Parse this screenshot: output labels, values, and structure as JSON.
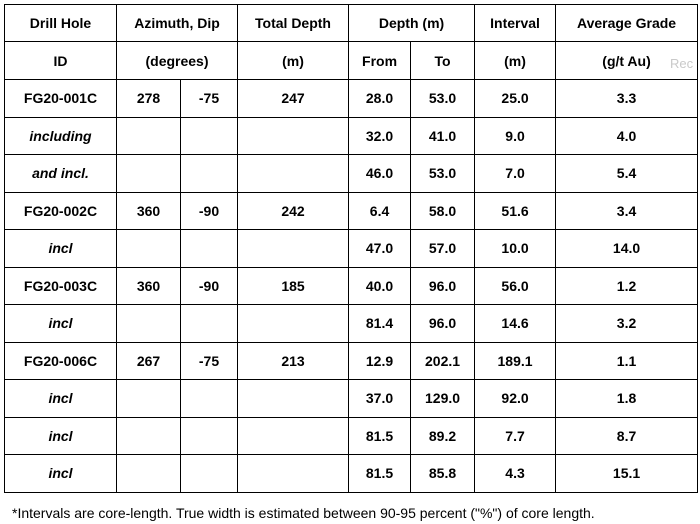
{
  "table": {
    "headers": {
      "drill_hole_line1": "Drill Hole",
      "drill_hole_line2": "ID",
      "azimuth_line1": "Azimuth, Dip",
      "azimuth_line2": "(degrees)",
      "total_depth_line1": "Total Depth",
      "total_depth_line2": "(m)",
      "depth": "Depth (m)",
      "from": "From",
      "to": "To",
      "interval_line1": "Interval",
      "interval_line2": "(m)",
      "grade_line1": "Average Grade",
      "grade_line2": "(g/t Au)"
    },
    "rows": [
      {
        "id": "FG20-001C",
        "azimuth": "278",
        "dip": "-75",
        "total_depth": "247",
        "from": "28.0",
        "to": "53.0",
        "interval": "25.0",
        "grade": "3.3"
      },
      {
        "id": "including",
        "azimuth": "",
        "dip": "",
        "total_depth": "",
        "from": "32.0",
        "to": "41.0",
        "interval": "9.0",
        "grade": "4.0"
      },
      {
        "id": "and incl.",
        "azimuth": "",
        "dip": "",
        "total_depth": "",
        "from": "46.0",
        "to": "53.0",
        "interval": "7.0",
        "grade": "5.4"
      },
      {
        "id": "FG20-002C",
        "azimuth": "360",
        "dip": "-90",
        "total_depth": "242",
        "from": "6.4",
        "to": "58.0",
        "interval": "51.6",
        "grade": "3.4"
      },
      {
        "id": "incl",
        "azimuth": "",
        "dip": "",
        "total_depth": "",
        "from": "47.0",
        "to": "57.0",
        "interval": "10.0",
        "grade": "14.0"
      },
      {
        "id": "FG20-003C",
        "azimuth": "360",
        "dip": "-90",
        "total_depth": "185",
        "from": "40.0",
        "to": "96.0",
        "interval": "56.0",
        "grade": "1.2"
      },
      {
        "id": "incl",
        "azimuth": "",
        "dip": "",
        "total_depth": "",
        "from": "81.4",
        "to": "96.0",
        "interval": "14.6",
        "grade": "3.2"
      },
      {
        "id": "FG20-006C",
        "azimuth": "267",
        "dip": "-75",
        "total_depth": "213",
        "from": "12.9",
        "to": "202.1",
        "interval": "189.1",
        "grade": "1.1"
      },
      {
        "id": "incl",
        "azimuth": "",
        "dip": "",
        "total_depth": "",
        "from": "37.0",
        "to": "129.0",
        "interval": "92.0",
        "grade": "1.8"
      },
      {
        "id": "incl",
        "azimuth": "",
        "dip": "",
        "total_depth": "",
        "from": "81.5",
        "to": "89.2",
        "interval": "7.7",
        "grade": "8.7"
      },
      {
        "id": "incl",
        "azimuth": "",
        "dip": "",
        "total_depth": "",
        "from": "81.5",
        "to": "85.8",
        "interval": "4.3",
        "grade": "15.1"
      }
    ]
  },
  "footnote": "*Intervals are core-length. True width is estimated between 90-95 percent (\"%\") of core length.",
  "watermark": "Rec"
}
